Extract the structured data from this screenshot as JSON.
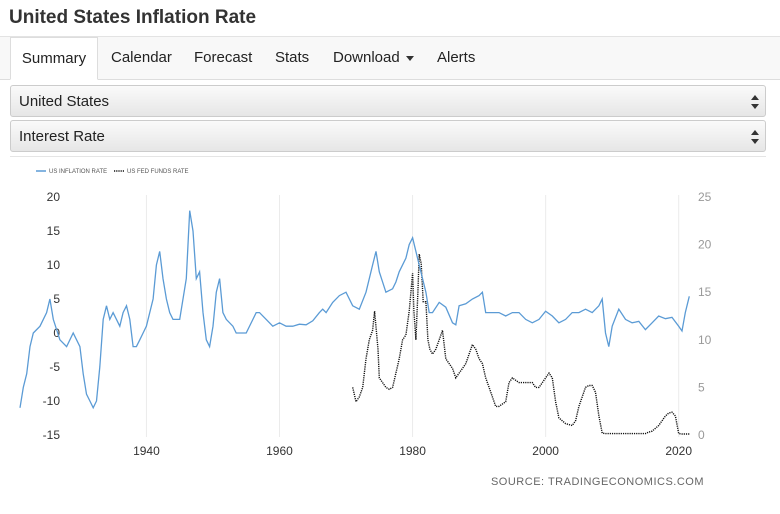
{
  "page": {
    "title": "United States Inflation Rate"
  },
  "tabs": [
    {
      "label": "Summary",
      "active": true
    },
    {
      "label": "Calendar"
    },
    {
      "label": "Forecast"
    },
    {
      "label": "Stats"
    },
    {
      "label": "Download"
    },
    {
      "label": "Alerts"
    }
  ],
  "selects": {
    "country": {
      "value": "United States"
    },
    "indicator": {
      "value": "Interest Rate"
    }
  },
  "colors": {
    "inflation": "#5b9bd5",
    "fedfunds": "#111111",
    "grid": "#ebebeb"
  },
  "chart_data": {
    "type": "line",
    "source": "SOURCE: TRADINGECONOMICS.COM",
    "legend": [
      "US INFLATION RATE",
      "US FED FUNDS RATE"
    ],
    "x_ticks": [
      "1940",
      "1960",
      "1980",
      "2000",
      "2020"
    ],
    "left_ticks": [
      "20",
      "15",
      "10",
      "5",
      "0",
      "-5",
      "-10",
      "-15"
    ],
    "right_ticks": [
      "25",
      "20",
      "15",
      "10",
      "5",
      "0"
    ],
    "xlim": [
      1921,
      2022
    ],
    "ylim_left": [
      -15,
      20
    ],
    "ylim_right": [
      0,
      25
    ],
    "series": [
      {
        "name": "US INFLATION RATE",
        "axis": "left",
        "x": [
          1921,
          1921.5,
          1922,
          1922.5,
          1923,
          1924,
          1925,
          1925.5,
          1926,
          1927,
          1928,
          1929,
          1930,
          1930.5,
          1931,
          1931.5,
          1932,
          1932.5,
          1933,
          1933.5,
          1934,
          1934.5,
          1935,
          1936,
          1936.5,
          1937,
          1937.5,
          1938,
          1938.5,
          1939,
          1939.5,
          1940,
          1941,
          1941.5,
          1942,
          1942.5,
          1943,
          1943.5,
          1944,
          1945,
          1946,
          1946.5,
          1947,
          1947.5,
          1948,
          1948.5,
          1949,
          1949.5,
          1950,
          1950.5,
          1951,
          1951.5,
          1952,
          1953,
          1953.5,
          1954,
          1955,
          1956,
          1956.5,
          1957,
          1958,
          1959,
          1960,
          1961,
          1962,
          1963,
          1964,
          1965,
          1966,
          1966.5,
          1967,
          1968,
          1969,
          1970,
          1971,
          1972,
          1973,
          1974,
          1974.5,
          1975,
          1976,
          1977,
          1977.5,
          1978,
          1979,
          1979.5,
          1980,
          1980.5,
          1981,
          1982,
          1982.5,
          1983,
          1984,
          1985,
          1986,
          1986.5,
          1987,
          1988,
          1989,
          1990,
          1990.5,
          1991,
          1992,
          1993,
          1994,
          1995,
          1996,
          1997,
          1998,
          1999,
          2000,
          2001,
          2002,
          2003,
          2004,
          2005,
          2006,
          2007,
          2008,
          2008.5,
          2009,
          2009.5,
          2010,
          2011,
          2012,
          2013,
          2014,
          2015,
          2016,
          2017,
          2018,
          2019,
          2020,
          2020.5,
          2021,
          2021.6
        ],
        "values": [
          -11,
          -8,
          -6,
          -2,
          0,
          1,
          3,
          5,
          2,
          -1,
          -2,
          0,
          -2,
          -6,
          -9,
          -10,
          -11,
          -10,
          -5,
          2,
          4,
          2,
          3,
          1,
          3,
          4,
          2,
          -2,
          -2,
          -1,
          0,
          1,
          5,
          10,
          12,
          8,
          5,
          3,
          2,
          2,
          8,
          18,
          15,
          8,
          9,
          3,
          -1,
          -2,
          1,
          6,
          8,
          3,
          2,
          1,
          0,
          0,
          0,
          2,
          3,
          3,
          2,
          1,
          1.5,
          1,
          1,
          1.3,
          1.2,
          1.8,
          3,
          3.5,
          3,
          4.5,
          5.5,
          6,
          4,
          3.5,
          6,
          10,
          12,
          9,
          6,
          6.5,
          7.5,
          9,
          11,
          13,
          14,
          12,
          10,
          6,
          3,
          3,
          4.5,
          3.8,
          1.5,
          1.2,
          4,
          4.3,
          5,
          5.5,
          6,
          3,
          3,
          3,
          2.5,
          3,
          3,
          2,
          1.5,
          2,
          3.2,
          2.5,
          1.5,
          2,
          3,
          3,
          3.5,
          3,
          4,
          5,
          0,
          -2,
          1,
          3.5,
          2,
          1.5,
          1.7,
          0.5,
          1.5,
          2.5,
          2.1,
          2.3,
          1,
          0.3,
          3,
          5.4
        ]
      },
      {
        "name": "US FED FUNDS RATE",
        "axis": "right",
        "x": [
          1971,
          1971.5,
          1972,
          1972.5,
          1973,
          1973.5,
          1974,
          1974.3,
          1974.8,
          1975,
          1975.5,
          1976,
          1976.5,
          1977,
          1977.5,
          1978,
          1978.5,
          1979,
          1979.5,
          1980,
          1980.2,
          1980.5,
          1980.8,
          1981,
          1981.3,
          1981.6,
          1982,
          1982.3,
          1982.6,
          1983,
          1983.5,
          1984,
          1984.5,
          1985,
          1986,
          1986.5,
          1987,
          1987.5,
          1988,
          1989,
          1989.5,
          1990,
          1990.5,
          1991,
          1991.5,
          1992,
          1992.5,
          1993,
          1994,
          1994.5,
          1995,
          1996,
          1997,
          1998,
          1998.5,
          1999,
          2000,
          2000.5,
          2001,
          2001.5,
          2002,
          2003,
          2004,
          2004.5,
          2005,
          2006,
          2006.5,
          2007,
          2007.5,
          2008,
          2008.5,
          2009,
          2010,
          2015,
          2015.5,
          2016,
          2017,
          2018,
          2018.5,
          2019,
          2019.5,
          2020,
          2020.5,
          2021,
          2021.6
        ],
        "values": [
          5,
          3.5,
          4,
          5,
          8,
          10,
          11,
          13,
          9,
          6,
          5.5,
          5,
          4.8,
          5,
          6.5,
          8,
          10,
          10.5,
          13,
          17,
          13,
          10,
          15,
          19,
          18,
          14,
          14,
          10,
          9,
          8.5,
          9,
          10,
          11,
          8,
          7,
          6,
          6.5,
          7,
          7.5,
          9.5,
          9,
          8,
          7.5,
          6,
          5,
          4,
          3,
          3,
          3.5,
          5.5,
          6,
          5.5,
          5.5,
          5.5,
          5,
          5,
          6,
          6.5,
          6,
          3.5,
          1.8,
          1.2,
          1,
          1.5,
          3,
          5,
          5.2,
          5.2,
          4.5,
          2,
          0.2,
          0.15,
          0.15,
          0.15,
          0.3,
          0.4,
          1,
          2,
          2.3,
          2.4,
          2,
          0.15,
          0.1,
          0.1,
          0.1
        ]
      }
    ]
  }
}
